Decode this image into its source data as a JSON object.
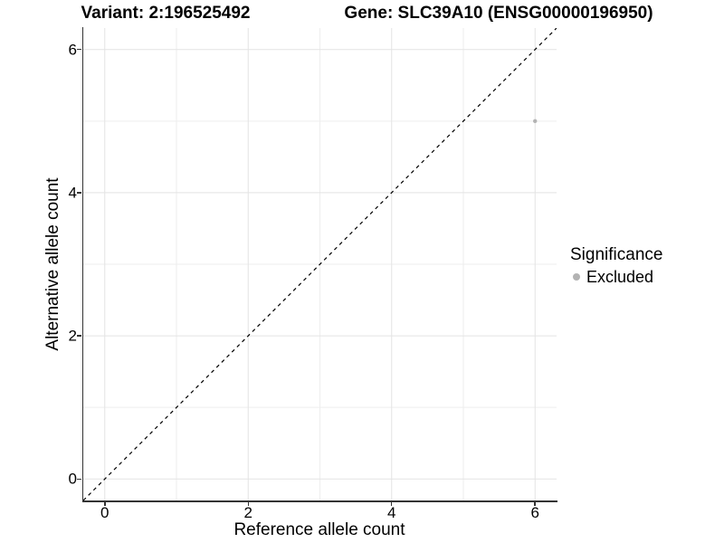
{
  "chart_data": {
    "type": "scatter",
    "title_left": "Variant: 2:196525492",
    "title_right": "Gene: SLC39A10 (ENSG00000196950)",
    "xlabel": "Reference allele count",
    "ylabel": "Alternative allele count",
    "xlim": [
      -0.3,
      6.3
    ],
    "ylim": [
      -0.3,
      6.3
    ],
    "x_ticks": [
      0,
      2,
      4,
      6
    ],
    "y_ticks": [
      0,
      2,
      4,
      6
    ],
    "x_minor_ticks": [
      1,
      3,
      5
    ],
    "y_minor_ticks": [
      1,
      3,
      5
    ],
    "grid": true,
    "series": [
      {
        "name": "Excluded",
        "color": "#b3b3b3",
        "points": [
          {
            "x": 6,
            "y": 5
          }
        ]
      }
    ],
    "reference_line": {
      "type": "identity",
      "equation": "y = x",
      "style": "dashed",
      "color": "#000000"
    },
    "legend": {
      "title": "Significance",
      "position": "right",
      "entries": [
        {
          "label": "Excluded",
          "color": "#b3b3b3"
        }
      ]
    }
  },
  "colors": {
    "background": "#ffffff",
    "axis": "#333333",
    "grid_major": "#e3e3e3",
    "grid_minor": "#eeeeee",
    "text": "#000000",
    "point": "#b3b3b3"
  }
}
